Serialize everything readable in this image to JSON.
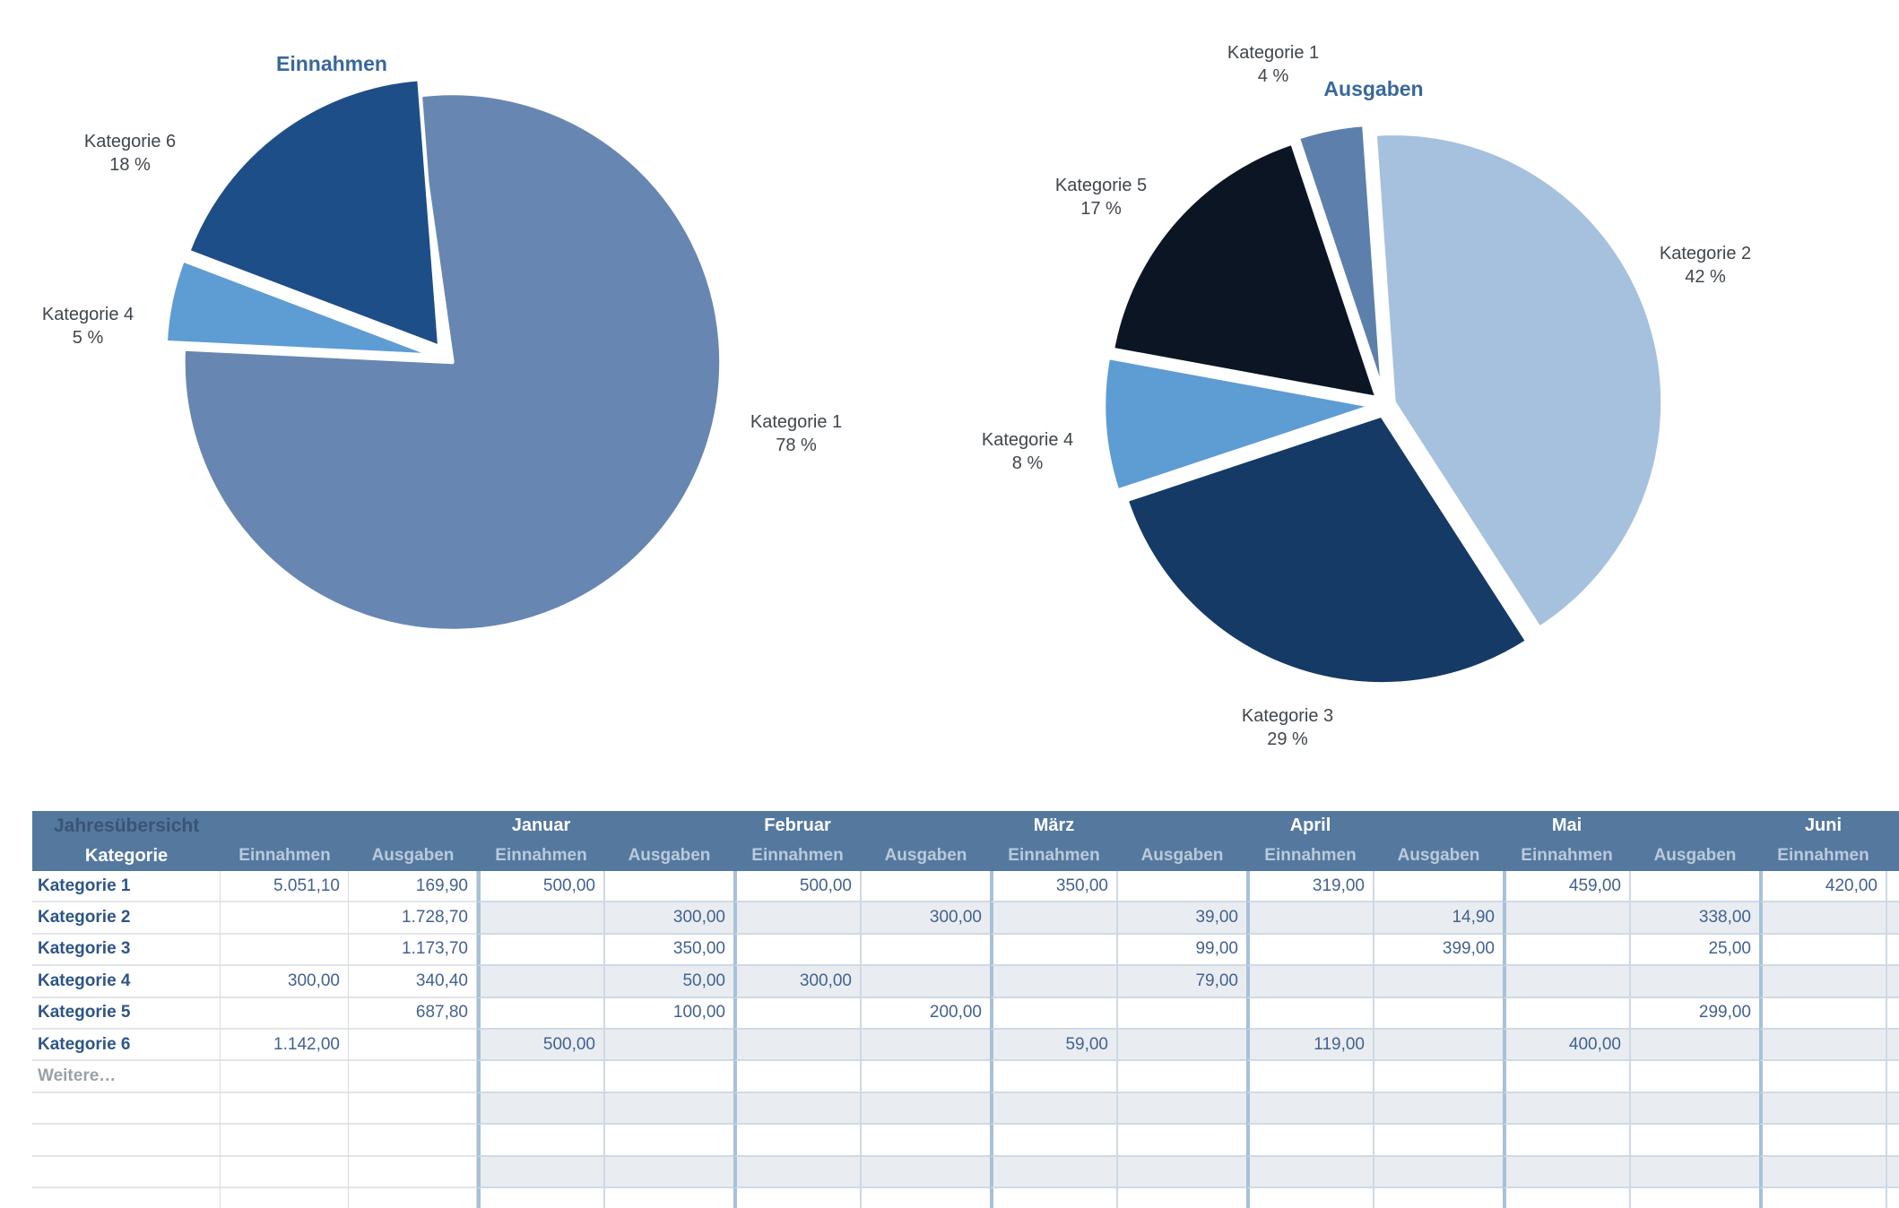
{
  "style_colors": {
    "table_header_bg": "#55789f",
    "table_header_title_text": "#3a5474",
    "table_subheader_text": "#b9cadb",
    "row_label_text": "#2e5586",
    "cell_value_text": "#44618f",
    "band_row_bg": "#e9edf2",
    "month_group_separator": "#a8c1d6",
    "chart_title_text": "#39689b",
    "chart_label_text": "#3f464d"
  },
  "chart_data": [
    {
      "type": "pie",
      "title": "Einnahmen",
      "legend": "none",
      "slice_order": "clockwise from top",
      "categories": [
        "Kategorie 1",
        "Kategorie 4",
        "Kategorie 6"
      ],
      "values": [
        78,
        5,
        18
      ],
      "pct_labels": [
        "78 %",
        "5 %",
        "18 %"
      ],
      "colors": [
        "#6787b2",
        "#5e9cd4",
        "#1e4e87"
      ]
    },
    {
      "type": "pie",
      "title": "Ausgaben",
      "legend": "none",
      "slice_order": "clockwise from top",
      "categories": [
        "Kategorie 2",
        "Kategorie 3",
        "Kategorie 4",
        "Kategorie 5",
        "Kategorie 1"
      ],
      "values": [
        42,
        29,
        8,
        17,
        4
      ],
      "pct_labels": [
        "42 %",
        "29 %",
        "8 %",
        "17 %",
        "4 %"
      ],
      "colors": [
        "#a6c1de",
        "#153a66",
        "#5e9cd4",
        "#0b1523",
        "#5c80ab"
      ]
    },
    {
      "type": "table",
      "title": "Jahresübersicht",
      "category_column_header": "Kategorie",
      "value_column_headers": [
        "Einnahmen",
        "Ausgaben"
      ],
      "months": [
        "Januar",
        "Februar",
        "März",
        "April",
        "Mai",
        "Juni"
      ],
      "rows": [
        {
          "label": "Kategorie 1",
          "values": [
            "5.051,10",
            "169,90",
            "500,00",
            "",
            "500,00",
            "",
            "350,00",
            "",
            "319,00",
            "",
            "459,00",
            "",
            "420,00",
            ""
          ]
        },
        {
          "label": "Kategorie 2",
          "values": [
            "",
            "1.728,70",
            "",
            "300,00",
            "",
            "300,00",
            "",
            "39,00",
            "",
            "14,90",
            "",
            "338,00",
            "",
            ""
          ]
        },
        {
          "label": "Kategorie 3",
          "values": [
            "",
            "1.173,70",
            "",
            "350,00",
            "",
            "",
            "",
            "99,00",
            "",
            "399,00",
            "",
            "25,00",
            "",
            ""
          ]
        },
        {
          "label": "Kategorie 4",
          "values": [
            "300,00",
            "340,40",
            "",
            "50,00",
            "300,00",
            "",
            "",
            "79,00",
            "",
            "",
            "",
            "",
            "",
            ""
          ]
        },
        {
          "label": "Kategorie 5",
          "values": [
            "",
            "687,80",
            "",
            "100,00",
            "",
            "200,00",
            "",
            "",
            "",
            "",
            "",
            "299,00",
            "",
            ""
          ]
        },
        {
          "label": "Kategorie 6",
          "values": [
            "1.142,00",
            "",
            "500,00",
            "",
            "",
            "",
            "59,00",
            "",
            "119,00",
            "",
            "400,00",
            "",
            "",
            ""
          ]
        },
        {
          "label": "Weitere…",
          "values": [
            "",
            "",
            "",
            "",
            "",
            "",
            "",
            "",
            "",
            "",
            "",
            "",
            "",
            ""
          ]
        },
        {
          "label": "",
          "values": [
            "",
            "",
            "",
            "",
            "",
            "",
            "",
            "",
            "",
            "",
            "",
            "",
            "",
            ""
          ]
        },
        {
          "label": "",
          "values": [
            "",
            "",
            "",
            "",
            "",
            "",
            "",
            "",
            "",
            "",
            "",
            "",
            "",
            ""
          ]
        },
        {
          "label": "",
          "values": [
            "",
            "",
            "",
            "",
            "",
            "",
            "",
            "",
            "",
            "",
            "",
            "",
            "",
            ""
          ]
        },
        {
          "label": "",
          "values": [
            "",
            "",
            "",
            "",
            "",
            "",
            "",
            "",
            "",
            "",
            "",
            "",
            "",
            ""
          ]
        }
      ]
    }
  ]
}
